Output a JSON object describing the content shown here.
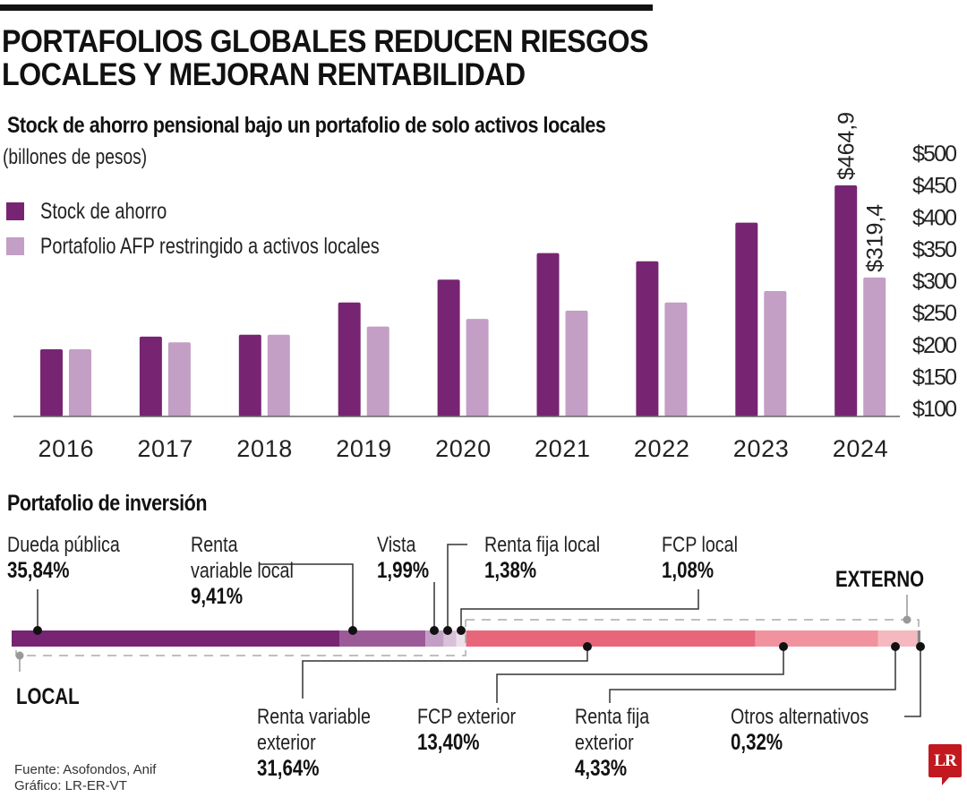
{
  "header": {
    "title_line1": "PORTAFOLIOS GLOBALES REDUCEN RIESGOS",
    "title_line2": "LOCALES Y MEJORAN RENTABILIDAD"
  },
  "colors": {
    "stock": "#772572",
    "restricted": "#c39ec5",
    "rule": "#111111",
    "logo": "#c2181f"
  },
  "chart_data": [
    {
      "type": "bar",
      "title": "Stock de ahorro pensional bajo un portafolio de solo activos locales",
      "subtitle": "(billones de pesos)",
      "xlabel": "",
      "ylabel": "",
      "categories": [
        "2016",
        "2017",
        "2018",
        "2019",
        "2020",
        "2021",
        "2022",
        "2023",
        "2024"
      ],
      "series": [
        {
          "name": "Stock de ahorro",
          "color": "#772572",
          "values": [
            206,
            226,
            229,
            280,
            316,
            358,
            345,
            406,
            464.9
          ]
        },
        {
          "name": "Portafolio AFP restringido a activos locales",
          "color": "#c39ec5",
          "values": [
            206,
            217,
            229,
            242,
            254,
            267,
            280,
            298,
            319.4
          ]
        }
      ],
      "data_labels": [
        {
          "series": 0,
          "category": "2024",
          "text": "$464,9"
        },
        {
          "series": 1,
          "category": "2024",
          "text": "$319,4"
        }
      ],
      "y_ticks": [
        "$500",
        "$450",
        "$400",
        "$350",
        "$300",
        "$250",
        "$200",
        "$150",
        "$100"
      ],
      "y_tick_values": [
        500,
        450,
        400,
        350,
        300,
        250,
        200,
        150,
        100
      ],
      "ylim": [
        100,
        500
      ],
      "y_axis_side": "right",
      "grid": false,
      "legend_position": "top-left"
    },
    {
      "type": "bar",
      "orientation": "horizontal-stacked",
      "title": "Portafolio de inversión",
      "unit": "%",
      "groups": [
        {
          "name": "LOCAL",
          "segments": [
            0,
            1,
            2,
            3,
            4
          ]
        },
        {
          "name": "EXTERNO",
          "segments": [
            5,
            6,
            7,
            8
          ]
        }
      ],
      "segments": [
        {
          "name": "Dueda pública",
          "value": 35.84,
          "label": "35,84%",
          "color": "#772572"
        },
        {
          "name": "Renta variable local",
          "value": 9.41,
          "label": "9,41%",
          "color": "#9c5b98"
        },
        {
          "name": "Vista",
          "value": 1.99,
          "label": "1,99%",
          "color": "#c39ec5"
        },
        {
          "name": "Renta fija local",
          "value": 1.38,
          "label": "1,38%",
          "color": "#d9c1d9"
        },
        {
          "name": "FCP local",
          "value": 1.08,
          "label": "1,08%",
          "color": "#ece0ec"
        },
        {
          "name": "Renta variable exterior",
          "value": 31.64,
          "label": "31,64%",
          "color": "#e8667a"
        },
        {
          "name": "FCP exterior",
          "value": 13.4,
          "label": "13,40%",
          "color": "#f0939e"
        },
        {
          "name": "Renta fija exterior",
          "value": 4.33,
          "label": "4,33%",
          "color": "#f5b8be"
        },
        {
          "name": "Otros alternativos",
          "value": 0.32,
          "label": "0,32%",
          "color": "#888888"
        }
      ]
    }
  ],
  "labels": {
    "seg0_name": "Dueda pública",
    "seg0_val": "35,84%",
    "seg1_name_a": "Renta",
    "seg1_name_b": "variable local",
    "seg1_val": "9,41%",
    "seg2_name": "Vista",
    "seg2_val": "1,99%",
    "seg3_name": "Renta fija local",
    "seg3_val": "1,38%",
    "seg4_name": "FCP local",
    "seg4_val": "1,08%",
    "seg5_name_a": "Renta variable",
    "seg5_name_b": "exterior",
    "seg5_val": "31,64%",
    "seg6_name": "FCP exterior",
    "seg6_val": "13,40%",
    "seg7_name_a": "Renta fija",
    "seg7_name_b": "exterior",
    "seg7_val": "4,33%",
    "seg8_name": "Otros alternativos",
    "seg8_val": "0,32%",
    "local": "LOCAL",
    "externo": "EXTERNO"
  },
  "footer": {
    "source": "Fuente: Asofondos, Anif",
    "credit": "Gráfico: LR-ER-VT",
    "logo": "LR"
  }
}
